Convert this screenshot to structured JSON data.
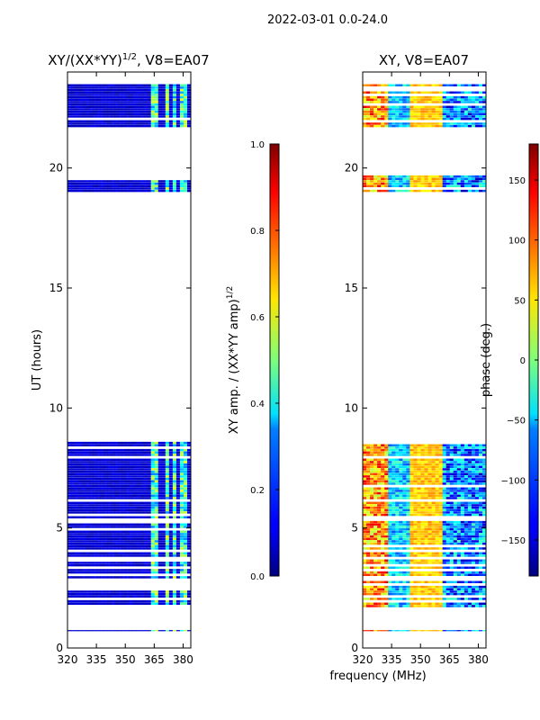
{
  "suptitle": "2022-03-01 0.0-24.0",
  "chart_data": [
    {
      "type": "heatmap",
      "title_main": "XY/(XX*YY)",
      "title_sup": "1/2",
      "title_tail": ", V8=EA07",
      "xlabel": "",
      "ylabel": "UT (hours)",
      "xlim": [
        320,
        384
      ],
      "ylim": [
        0,
        24
      ],
      "xticks": [
        320,
        335,
        350,
        365,
        380
      ],
      "yticks": [
        0,
        5,
        10,
        15,
        20
      ],
      "colorbar": {
        "label_main": "XY amp. / (XX*YY amp)",
        "label_sup": "1/2",
        "range": [
          0.0,
          1.0
        ],
        "ticks": [
          "0.0",
          "0.2",
          "0.4",
          "0.6",
          "0.8",
          "1.0"
        ],
        "colormap": "jet"
      },
      "data_bands_hours": [
        [
          0.7,
          0.75
        ],
        [
          1.7,
          8.6
        ],
        [
          19.0,
          19.7
        ],
        [
          21.7,
          23.5
        ]
      ],
      "bright_channels_mhz": [
        [
          363,
          367
        ],
        [
          370,
          372
        ],
        [
          374,
          377
        ],
        [
          379,
          382
        ]
      ]
    },
    {
      "type": "heatmap",
      "title": "XY, V8=EA07",
      "xlabel": "frequency (MHz)",
      "ylabel": "",
      "xlim": [
        320,
        384
      ],
      "ylim": [
        0,
        24
      ],
      "xticks": [
        320,
        335,
        350,
        365,
        380
      ],
      "yticks": [
        0,
        5,
        10,
        15,
        20
      ],
      "colorbar": {
        "label": "phase (deg.)",
        "range": [
          -180,
          180
        ],
        "ticks": [
          "−150",
          "−100",
          "−50",
          "0",
          "50",
          "100",
          "150"
        ],
        "colormap": "jet"
      },
      "data_bands_hours": [
        [
          0.7,
          0.75
        ],
        [
          1.7,
          8.6
        ],
        [
          19.0,
          19.7
        ],
        [
          21.7,
          23.5
        ]
      ]
    }
  ]
}
